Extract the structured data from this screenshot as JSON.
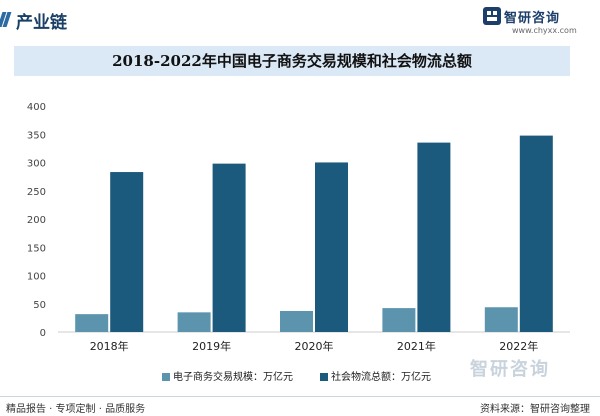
{
  "header": {
    "section_title": "产业链",
    "brand_name": "智研咨询",
    "brand_url": "www.chyxx.com"
  },
  "watermark": "智研咨询",
  "colors": {
    "series1": "#5c93ad",
    "series2": "#1b5a7c",
    "title_bar": "#dbe9f7",
    "axis_text": "#444444"
  },
  "chart_data": {
    "type": "bar",
    "title": "2018-2022年中国电子商务交易规模和社会物流总额",
    "categories": [
      "2018年",
      "2019年",
      "2020年",
      "2021年",
      "2022年"
    ],
    "series": [
      {
        "name": "电子商务交易规模：万亿元",
        "values": [
          31.6,
          34.8,
          37.2,
          42.3,
          43.8
        ]
      },
      {
        "name": "社会物流总额：万亿元",
        "values": [
          283.1,
          298.0,
          300.1,
          335.2,
          347.6
        ]
      }
    ],
    "yticks": [
      "0",
      "50",
      "100",
      "150",
      "200",
      "250",
      "300",
      "350",
      "400"
    ],
    "ylim": [
      0,
      400
    ],
    "xlabel": "",
    "ylabel": "",
    "legend": "bottom"
  },
  "footer": {
    "left": "精品报告 · 专项定制 · 品质服务",
    "right": "资料来源：智研咨询整理"
  }
}
